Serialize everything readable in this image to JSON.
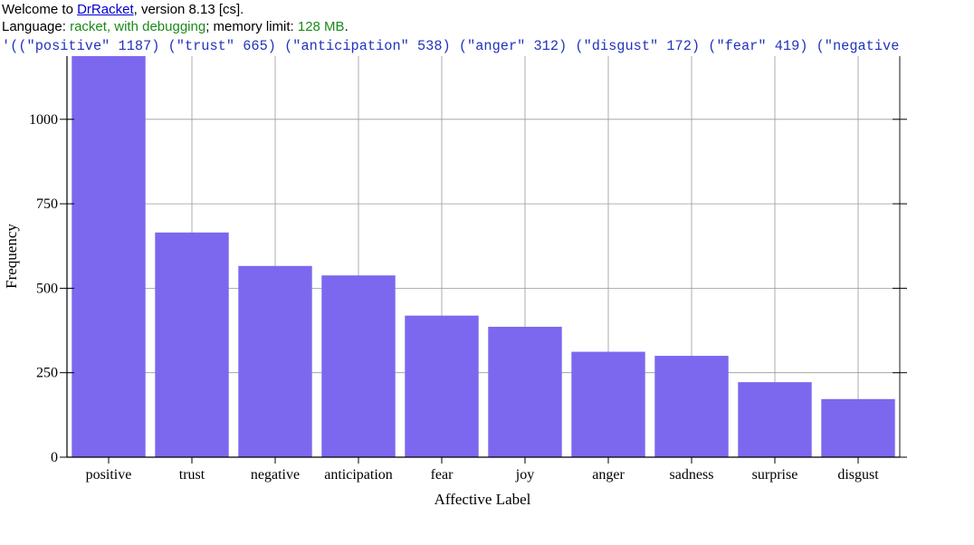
{
  "repl": {
    "welcome_prefix": "Welcome to ",
    "welcome_link": "DrRacket",
    "welcome_suffix": ", version 8.13 [cs].",
    "language_prefix": "Language: ",
    "language_name": "racket, with debugging",
    "language_mid": "; memory limit: ",
    "memory_limit": "128 MB",
    "language_suffix": ".",
    "result_text": "'((\"positive\" 1187) (\"trust\" 665) (\"anticipation\" 538) (\"anger\" 312) (\"disgust\" 172) (\"fear\" 419) (\"negative"
  },
  "chart_data": {
    "type": "bar",
    "title": "",
    "xlabel": "Affective Label",
    "ylabel": "Frequency",
    "categories": [
      "positive",
      "trust",
      "negative",
      "anticipation",
      "fear",
      "joy",
      "anger",
      "sadness",
      "surprise",
      "disgust"
    ],
    "values": [
      1187,
      665,
      566,
      538,
      419,
      386,
      312,
      300,
      222,
      172
    ],
    "ylim": [
      0,
      1187
    ],
    "yticks": [
      0,
      250,
      500,
      750,
      1000
    ],
    "ytick_labels": [
      "0",
      "250",
      "500",
      "750",
      "1000"
    ],
    "grid": true,
    "bar_color": "#7b68ee",
    "grid_color": "#999999"
  }
}
